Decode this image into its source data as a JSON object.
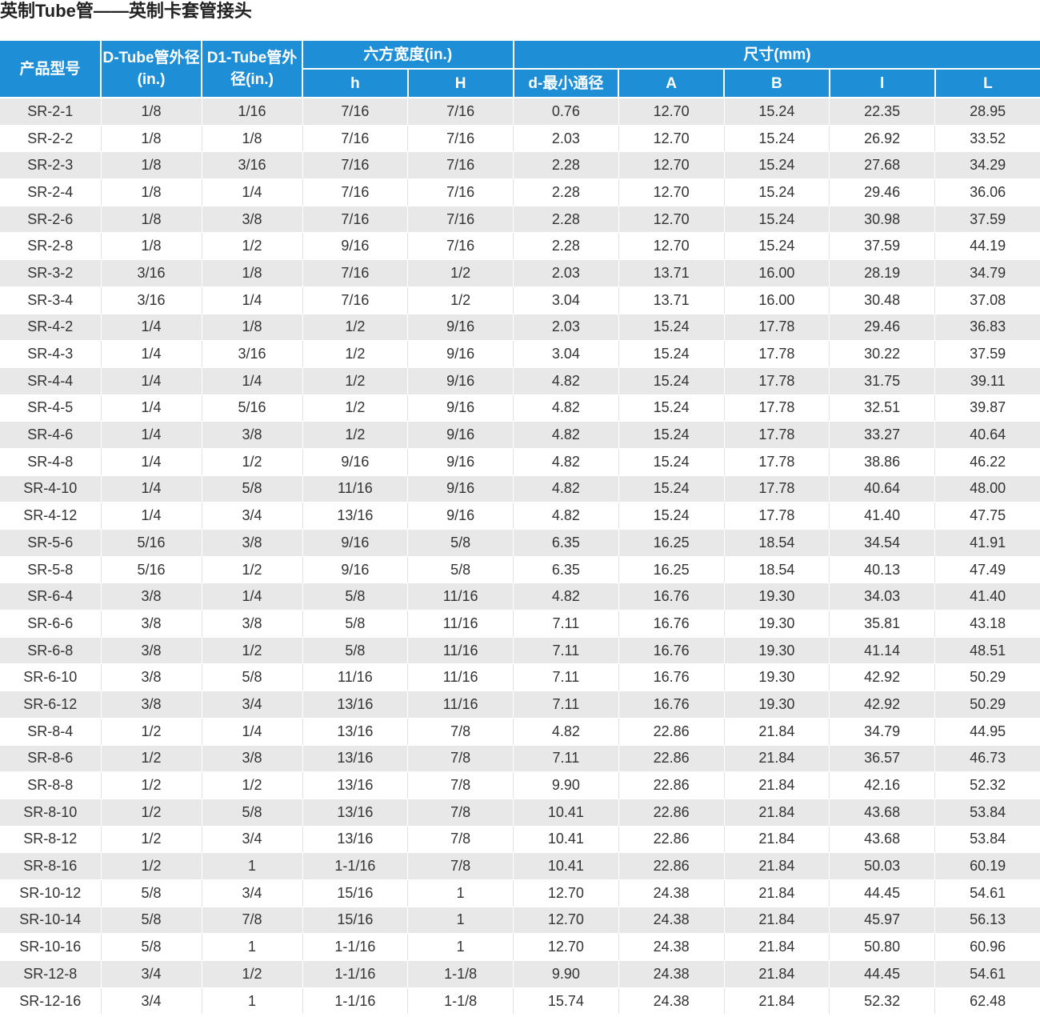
{
  "title": "英制Tube管——英制卡套管接头",
  "header": {
    "model": "产品型号",
    "d_tube": "D-Tube管外径(in.)",
    "d1_tube": "D1-Tube管外径(in.)",
    "hex_group": "六方宽度(in.)",
    "size_group": "尺寸(mm)",
    "h_small": "h",
    "h_big": "H",
    "d_min": "d-最小通径",
    "a": "A",
    "b": "B",
    "l_small": "l",
    "l_big": "L"
  },
  "rows": [
    [
      "SR-2-1",
      "1/8",
      "1/16",
      "7/16",
      "7/16",
      "0.76",
      "12.70",
      "15.24",
      "22.35",
      "28.95"
    ],
    [
      "SR-2-2",
      "1/8",
      "1/8",
      "7/16",
      "7/16",
      "2.03",
      "12.70",
      "15.24",
      "26.92",
      "33.52"
    ],
    [
      "SR-2-3",
      "1/8",
      "3/16",
      "7/16",
      "7/16",
      "2.28",
      "12.70",
      "15.24",
      "27.68",
      "34.29"
    ],
    [
      "SR-2-4",
      "1/8",
      "1/4",
      "7/16",
      "7/16",
      "2.28",
      "12.70",
      "15.24",
      "29.46",
      "36.06"
    ],
    [
      "SR-2-6",
      "1/8",
      "3/8",
      "7/16",
      "7/16",
      "2.28",
      "12.70",
      "15.24",
      "30.98",
      "37.59"
    ],
    [
      "SR-2-8",
      "1/8",
      "1/2",
      "9/16",
      "7/16",
      "2.28",
      "12.70",
      "15.24",
      "37.59",
      "44.19"
    ],
    [
      "SR-3-2",
      "3/16",
      "1/8",
      "7/16",
      "1/2",
      "2.03",
      "13.71",
      "16.00",
      "28.19",
      "34.79"
    ],
    [
      "SR-3-4",
      "3/16",
      "1/4",
      "7/16",
      "1/2",
      "3.04",
      "13.71",
      "16.00",
      "30.48",
      "37.08"
    ],
    [
      "SR-4-2",
      "1/4",
      "1/8",
      "1/2",
      "9/16",
      "2.03",
      "15.24",
      "17.78",
      "29.46",
      "36.83"
    ],
    [
      "SR-4-3",
      "1/4",
      "3/16",
      "1/2",
      "9/16",
      "3.04",
      "15.24",
      "17.78",
      "30.22",
      "37.59"
    ],
    [
      "SR-4-4",
      "1/4",
      "1/4",
      "1/2",
      "9/16",
      "4.82",
      "15.24",
      "17.78",
      "31.75",
      "39.11"
    ],
    [
      "SR-4-5",
      "1/4",
      "5/16",
      "1/2",
      "9/16",
      "4.82",
      "15.24",
      "17.78",
      "32.51",
      "39.87"
    ],
    [
      "SR-4-6",
      "1/4",
      "3/8",
      "1/2",
      "9/16",
      "4.82",
      "15.24",
      "17.78",
      "33.27",
      "40.64"
    ],
    [
      "SR-4-8",
      "1/4",
      "1/2",
      "9/16",
      "9/16",
      "4.82",
      "15.24",
      "17.78",
      "38.86",
      "46.22"
    ],
    [
      "SR-4-10",
      "1/4",
      "5/8",
      "11/16",
      "9/16",
      "4.82",
      "15.24",
      "17.78",
      "40.64",
      "48.00"
    ],
    [
      "SR-4-12",
      "1/4",
      "3/4",
      "13/16",
      "9/16",
      "4.82",
      "15.24",
      "17.78",
      "41.40",
      "47.75"
    ],
    [
      "SR-5-6",
      "5/16",
      "3/8",
      "9/16",
      "5/8",
      "6.35",
      "16.25",
      "18.54",
      "34.54",
      "41.91"
    ],
    [
      "SR-5-8",
      "5/16",
      "1/2",
      "9/16",
      "5/8",
      "6.35",
      "16.25",
      "18.54",
      "40.13",
      "47.49"
    ],
    [
      "SR-6-4",
      "3/8",
      "1/4",
      "5/8",
      "11/16",
      "4.82",
      "16.76",
      "19.30",
      "34.03",
      "41.40"
    ],
    [
      "SR-6-6",
      "3/8",
      "3/8",
      "5/8",
      "11/16",
      "7.11",
      "16.76",
      "19.30",
      "35.81",
      "43.18"
    ],
    [
      "SR-6-8",
      "3/8",
      "1/2",
      "5/8",
      "11/16",
      "7.11",
      "16.76",
      "19.30",
      "41.14",
      "48.51"
    ],
    [
      "SR-6-10",
      "3/8",
      "5/8",
      "11/16",
      "11/16",
      "7.11",
      "16.76",
      "19.30",
      "42.92",
      "50.29"
    ],
    [
      "SR-6-12",
      "3/8",
      "3/4",
      "13/16",
      "11/16",
      "7.11",
      "16.76",
      "19.30",
      "42.92",
      "50.29"
    ],
    [
      "SR-8-4",
      "1/2",
      "1/4",
      "13/16",
      "7/8",
      "4.82",
      "22.86",
      "21.84",
      "34.79",
      "44.95"
    ],
    [
      "SR-8-6",
      "1/2",
      "3/8",
      "13/16",
      "7/8",
      "7.11",
      "22.86",
      "21.84",
      "36.57",
      "46.73"
    ],
    [
      "SR-8-8",
      "1/2",
      "1/2",
      "13/16",
      "7/8",
      "9.90",
      "22.86",
      "21.84",
      "42.16",
      "52.32"
    ],
    [
      "SR-8-10",
      "1/2",
      "5/8",
      "13/16",
      "7/8",
      "10.41",
      "22.86",
      "21.84",
      "43.68",
      "53.84"
    ],
    [
      "SR-8-12",
      "1/2",
      "3/4",
      "13/16",
      "7/8",
      "10.41",
      "22.86",
      "21.84",
      "43.68",
      "53.84"
    ],
    [
      "SR-8-16",
      "1/2",
      "1",
      "1-1/16",
      "7/8",
      "10.41",
      "22.86",
      "21.84",
      "50.03",
      "60.19"
    ],
    [
      "SR-10-12",
      "5/8",
      "3/4",
      "15/16",
      "1",
      "12.70",
      "24.38",
      "21.84",
      "44.45",
      "54.61"
    ],
    [
      "SR-10-14",
      "5/8",
      "7/8",
      "15/16",
      "1",
      "12.70",
      "24.38",
      "21.84",
      "45.97",
      "56.13"
    ],
    [
      "SR-10-16",
      "5/8",
      "1",
      "1-1/16",
      "1",
      "12.70",
      "24.38",
      "21.84",
      "50.80",
      "60.96"
    ],
    [
      "SR-12-8",
      "3/4",
      "1/2",
      "1-1/16",
      "1-1/8",
      "9.90",
      "24.38",
      "21.84",
      "44.45",
      "54.61"
    ],
    [
      "SR-12-16",
      "3/4",
      "1",
      "1-1/16",
      "1-1/8",
      "15.74",
      "24.38",
      "21.84",
      "52.32",
      "62.48"
    ]
  ],
  "colors": {
    "header_bg": "#1e8fd6",
    "header_text": "#ffffff",
    "row_odd": "#e8e8e8",
    "row_even": "#ffffff"
  }
}
